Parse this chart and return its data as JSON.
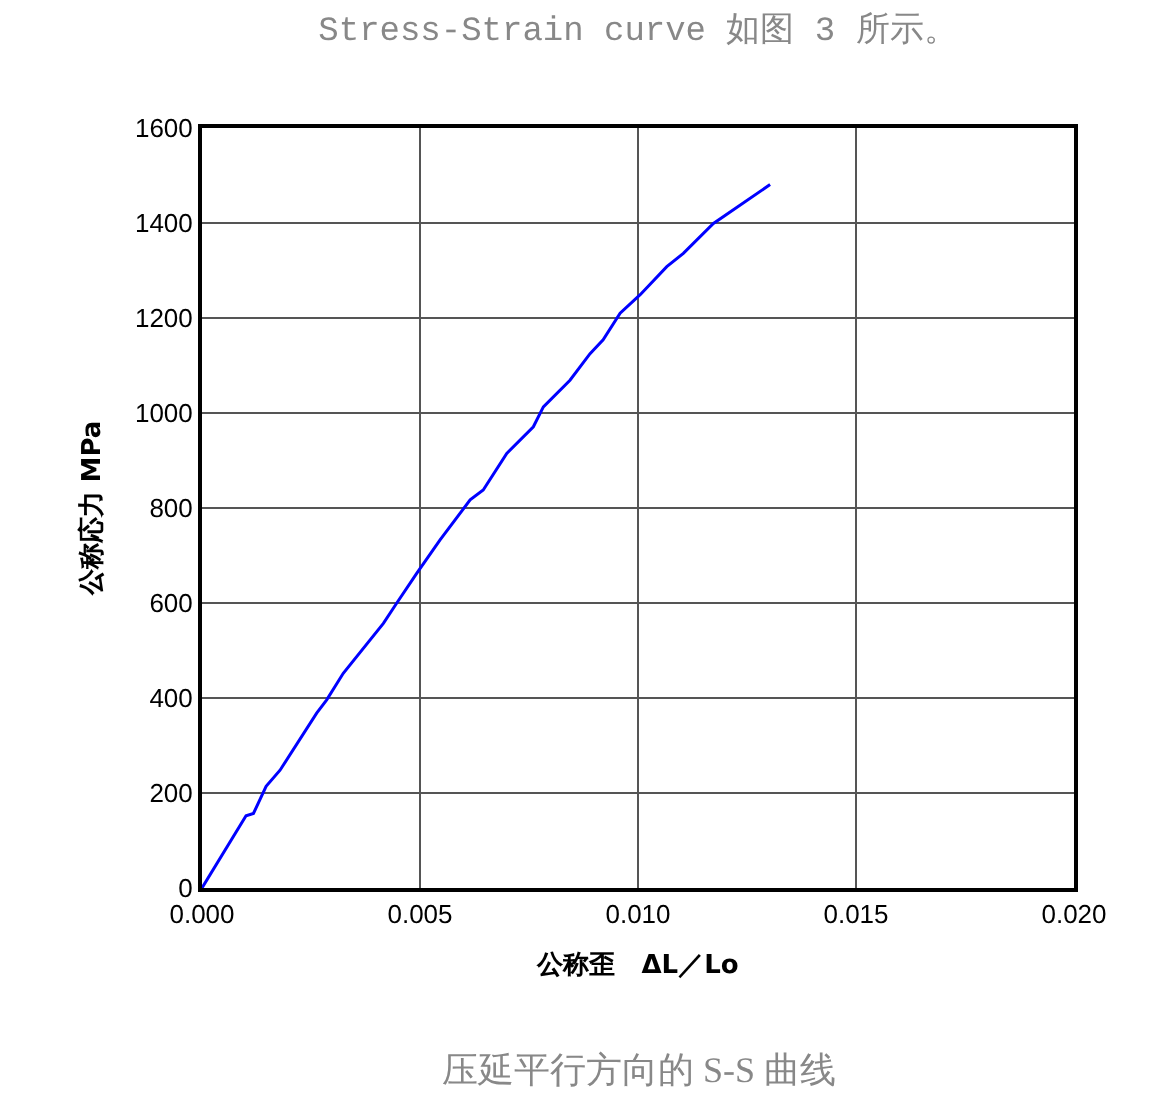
{
  "chart_data": {
    "type": "line",
    "title": "Stress-Strain curve 如图 3 所示。",
    "xlabel": "公称歪　ΔL／Lo",
    "ylabel": "公称応力 MPa",
    "annotations": [
      "压延平行方向的 S-S 曲线"
    ],
    "x": [
      0,
      0.00101,
      0.00118,
      0.00147,
      0.00179,
      0.00263,
      0.00286,
      0.00324,
      0.00416,
      0.00446,
      0.00492,
      0.00546,
      0.00615,
      0.00645,
      0.00699,
      0.0076,
      0.00783,
      0.00844,
      0.0089,
      0.0092,
      0.00959,
      0.01005,
      0.01066,
      0.01104,
      0.01173,
      0.01303
    ],
    "series": [
      {
        "color": "#0000ff",
        "values": [
          0,
          152,
          157,
          214,
          248,
          368,
          396,
          452,
          557,
          599,
          662,
          733,
          817,
          838,
          915,
          971,
          1013,
          1069,
          1125,
          1154,
          1210,
          1249,
          1308,
          1336,
          1399,
          1481
        ]
      }
    ],
    "xlim": [
      0,
      0.02
    ],
    "xticks": [
      {
        "value": 0,
        "label": "0.000"
      },
      {
        "value": 0.005,
        "label": "0.005"
      },
      {
        "value": 0.01,
        "label": "0.010"
      },
      {
        "value": 0.015,
        "label": "0.015"
      },
      {
        "value": 0.02,
        "label": "0.020"
      }
    ],
    "ylim": [
      0,
      1600
    ],
    "yticks": [
      0,
      200,
      400,
      600,
      800,
      1000,
      1200,
      1400,
      1600
    ],
    "grid": true,
    "marker": "none",
    "line_style": "solid"
  }
}
